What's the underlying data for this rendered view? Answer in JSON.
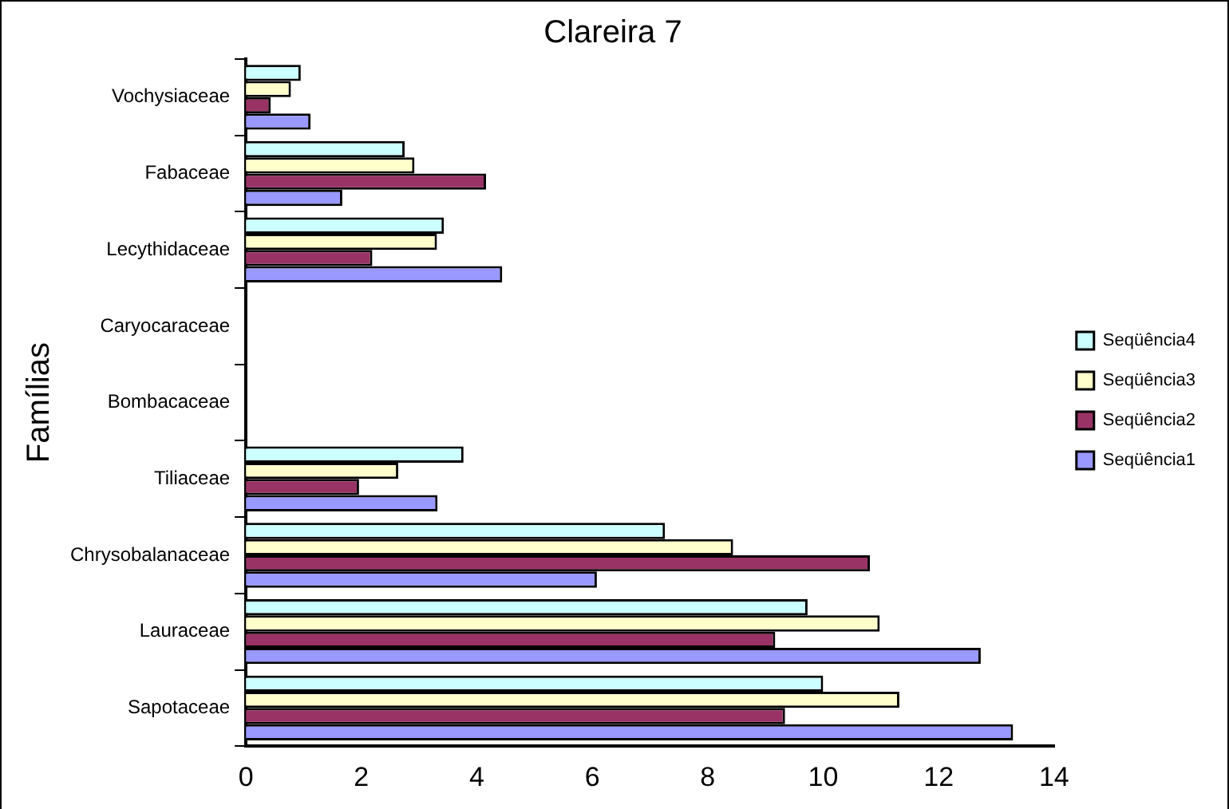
{
  "chart_data": {
    "type": "bar",
    "orientation": "horizontal",
    "title": "Clareira 7",
    "ylabel": "Famílias",
    "categories": [
      "Vochysiaceae",
      "Fabaceae",
      "Lecythidaceae",
      "Caryocaraceae",
      "Bombacaceae",
      "Tiliaceae",
      "Chrysobalanaceae",
      "Lauraceae",
      "Sapotaceae"
    ],
    "series": [
      {
        "name": "Seqüência4",
        "color": "#ccffff",
        "values": [
          0.95,
          2.75,
          3.43,
          0,
          0,
          3.77,
          7.26,
          9.73,
          10.0
        ]
      },
      {
        "name": "Seqüência3",
        "color": "#ffffcc",
        "values": [
          0.78,
          2.92,
          3.31,
          0,
          0,
          2.64,
          8.44,
          10.98,
          11.32
        ]
      },
      {
        "name": "Seqüência2",
        "color": "#993366",
        "values": [
          0.43,
          4.16,
          2.19,
          0,
          0,
          1.96,
          10.81,
          9.17,
          9.34
        ]
      },
      {
        "name": "Seqüência1",
        "color": "#9999ff",
        "values": [
          1.12,
          1.67,
          4.44,
          0,
          0,
          3.32,
          6.08,
          12.73,
          13.29
        ]
      }
    ],
    "xlim": [
      0,
      14
    ],
    "xticks": [
      0,
      2,
      4,
      6,
      8,
      10,
      12,
      14
    ],
    "grid": false,
    "legend": "right"
  }
}
